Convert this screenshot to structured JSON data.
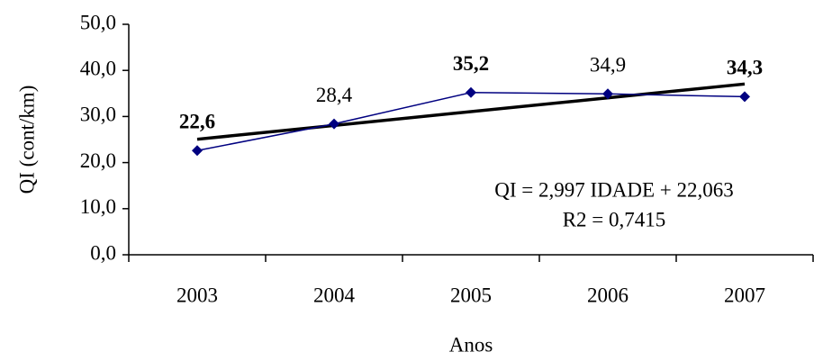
{
  "chart_data": {
    "type": "line",
    "x_label": "Anos",
    "y_label": "QI (cont/km)",
    "categories": [
      "2003",
      "2004",
      "2005",
      "2006",
      "2007"
    ],
    "series": [
      {
        "color": "#000080",
        "values": [
          22.6,
          28.4,
          35.2,
          34.9,
          34.3
        ],
        "value_labels": [
          "22,6",
          "28,4",
          "35,2",
          "34,9",
          "34,3"
        ],
        "value_label_colors": [
          "#2a8a1e",
          "#000000",
          "#ffc000",
          "#000000",
          "#ff0000"
        ],
        "value_label_bold": [
          true,
          false,
          true,
          false,
          true
        ]
      }
    ],
    "trendline": {
      "equation": "QI = 2,997 IDADE + 22,063",
      "r2_label": "R2 = 0,7415",
      "slope": 2.997,
      "intercept": 22.063,
      "color": "#000000"
    },
    "ylim": [
      0,
      50
    ],
    "yticks": [
      {
        "value": 0,
        "label": "0,0"
      },
      {
        "value": 10,
        "label": "10,0"
      },
      {
        "value": 20,
        "label": "20,0"
      },
      {
        "value": 30,
        "label": "30,0"
      },
      {
        "value": 40,
        "label": "40,0"
      },
      {
        "value": 50,
        "label": "50,0"
      }
    ]
  }
}
